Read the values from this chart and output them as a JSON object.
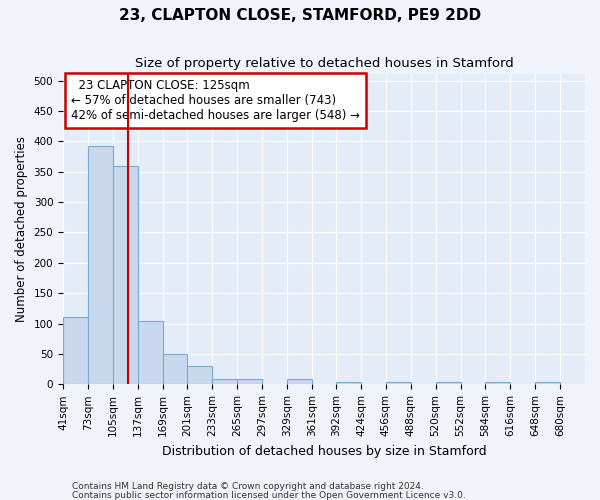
{
  "title1": "23, CLAPTON CLOSE, STAMFORD, PE9 2DD",
  "title2": "Size of property relative to detached houses in Stamford",
  "xlabel": "Distribution of detached houses by size in Stamford",
  "ylabel": "Number of detached properties",
  "footnote1": "Contains HM Land Registry data © Crown copyright and database right 2024.",
  "footnote2": "Contains public sector information licensed under the Open Government Licence v3.0.",
  "property_size": 125,
  "property_label": "23 CLAPTON CLOSE: 125sqm",
  "annotation_line1": "← 57% of detached houses are smaller (743)",
  "annotation_line2": "42% of semi-detached houses are larger (548) →",
  "bar_color": "#c8d8ee",
  "bar_edge_color": "#7aaad0",
  "vline_color": "#cc0000",
  "bin_edges": [
    41,
    73,
    105,
    137,
    169,
    201,
    233,
    265,
    297,
    329,
    361,
    392,
    424,
    456,
    488,
    520,
    552,
    584,
    616,
    648,
    680
  ],
  "bin_heights": [
    110,
    393,
    360,
    105,
    50,
    30,
    8,
    8,
    0,
    8,
    0,
    3,
    0,
    3,
    0,
    3,
    0,
    3,
    0,
    3
  ],
  "ylim": [
    0,
    510
  ],
  "yticks": [
    0,
    50,
    100,
    150,
    200,
    250,
    300,
    350,
    400,
    450,
    500
  ],
  "bg_color": "#f0f4fa",
  "plot_bg_color": "#e4ecf7",
  "grid_color": "#ffffff",
  "title1_fontsize": 11,
  "title2_fontsize": 9.5,
  "xlabel_fontsize": 9,
  "ylabel_fontsize": 8.5,
  "tick_fontsize": 7.5,
  "footnote_fontsize": 6.5,
  "annot_fontsize": 8.5
}
